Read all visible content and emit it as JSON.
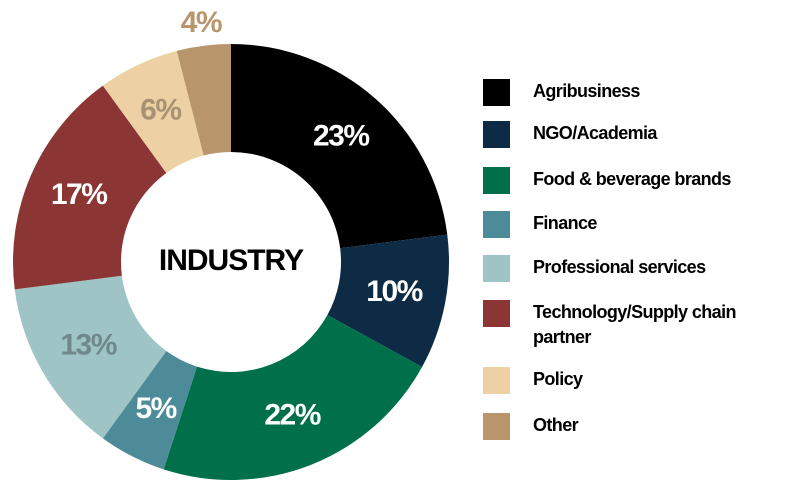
{
  "chart_data": {
    "type": "donut",
    "center_label": "INDUSTRY",
    "categories": [
      "Agribusiness",
      "NGO/Academia",
      "Food & beverage brands",
      "Finance",
      "Professional services",
      "Technology/Supply chain partner",
      "Policy",
      "Other"
    ],
    "values": [
      23,
      10,
      22,
      5,
      13,
      17,
      6,
      4
    ],
    "value_labels": [
      "23%",
      "10%",
      "22%",
      "5%",
      "13%",
      "17%",
      "6%",
      "4%"
    ],
    "colors": [
      "#000000",
      "#0d2b45",
      "#00704a",
      "#4d8b99",
      "#9fc4c6",
      "#8b3535",
      "#edd1a5",
      "#b8956a"
    ],
    "legend": "right"
  }
}
